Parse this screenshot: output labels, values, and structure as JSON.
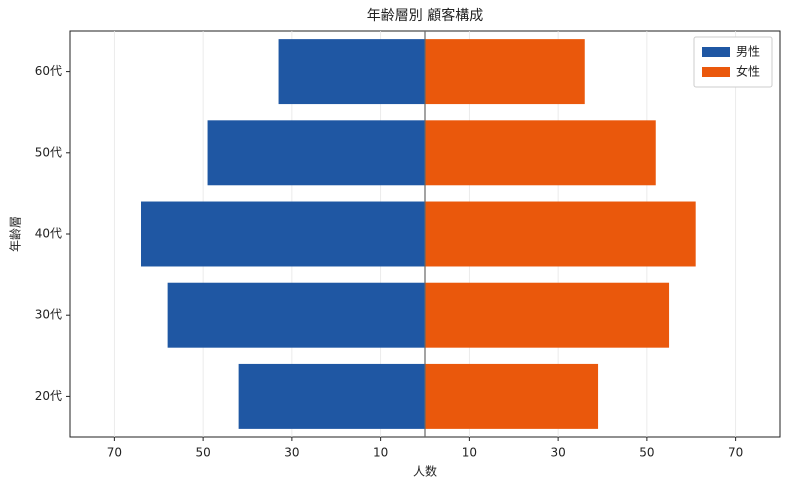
{
  "chart_data": {
    "type": "pyramid",
    "title": "年齢層別 顧客構成",
    "x_label": "人数",
    "y_label": "年齢層",
    "categories": [
      "20代",
      "30代",
      "40代",
      "50代",
      "60代"
    ],
    "series": [
      {
        "name": "男性",
        "color": "#1f57a3",
        "values": [
          -42,
          -58,
          -64,
          -49,
          -33
        ]
      },
      {
        "name": "女性",
        "color": "#ea580c",
        "values": [
          39,
          55,
          61,
          52,
          36
        ]
      }
    ],
    "xlim": [
      -80,
      80
    ],
    "xticks": [
      {
        "value": -70,
        "label": "70"
      },
      {
        "value": -50,
        "label": "50"
      },
      {
        "value": -30,
        "label": "30"
      },
      {
        "value": -10,
        "label": "10"
      },
      10,
      30,
      50,
      70
    ],
    "grid": true,
    "legend": "upper right"
  }
}
